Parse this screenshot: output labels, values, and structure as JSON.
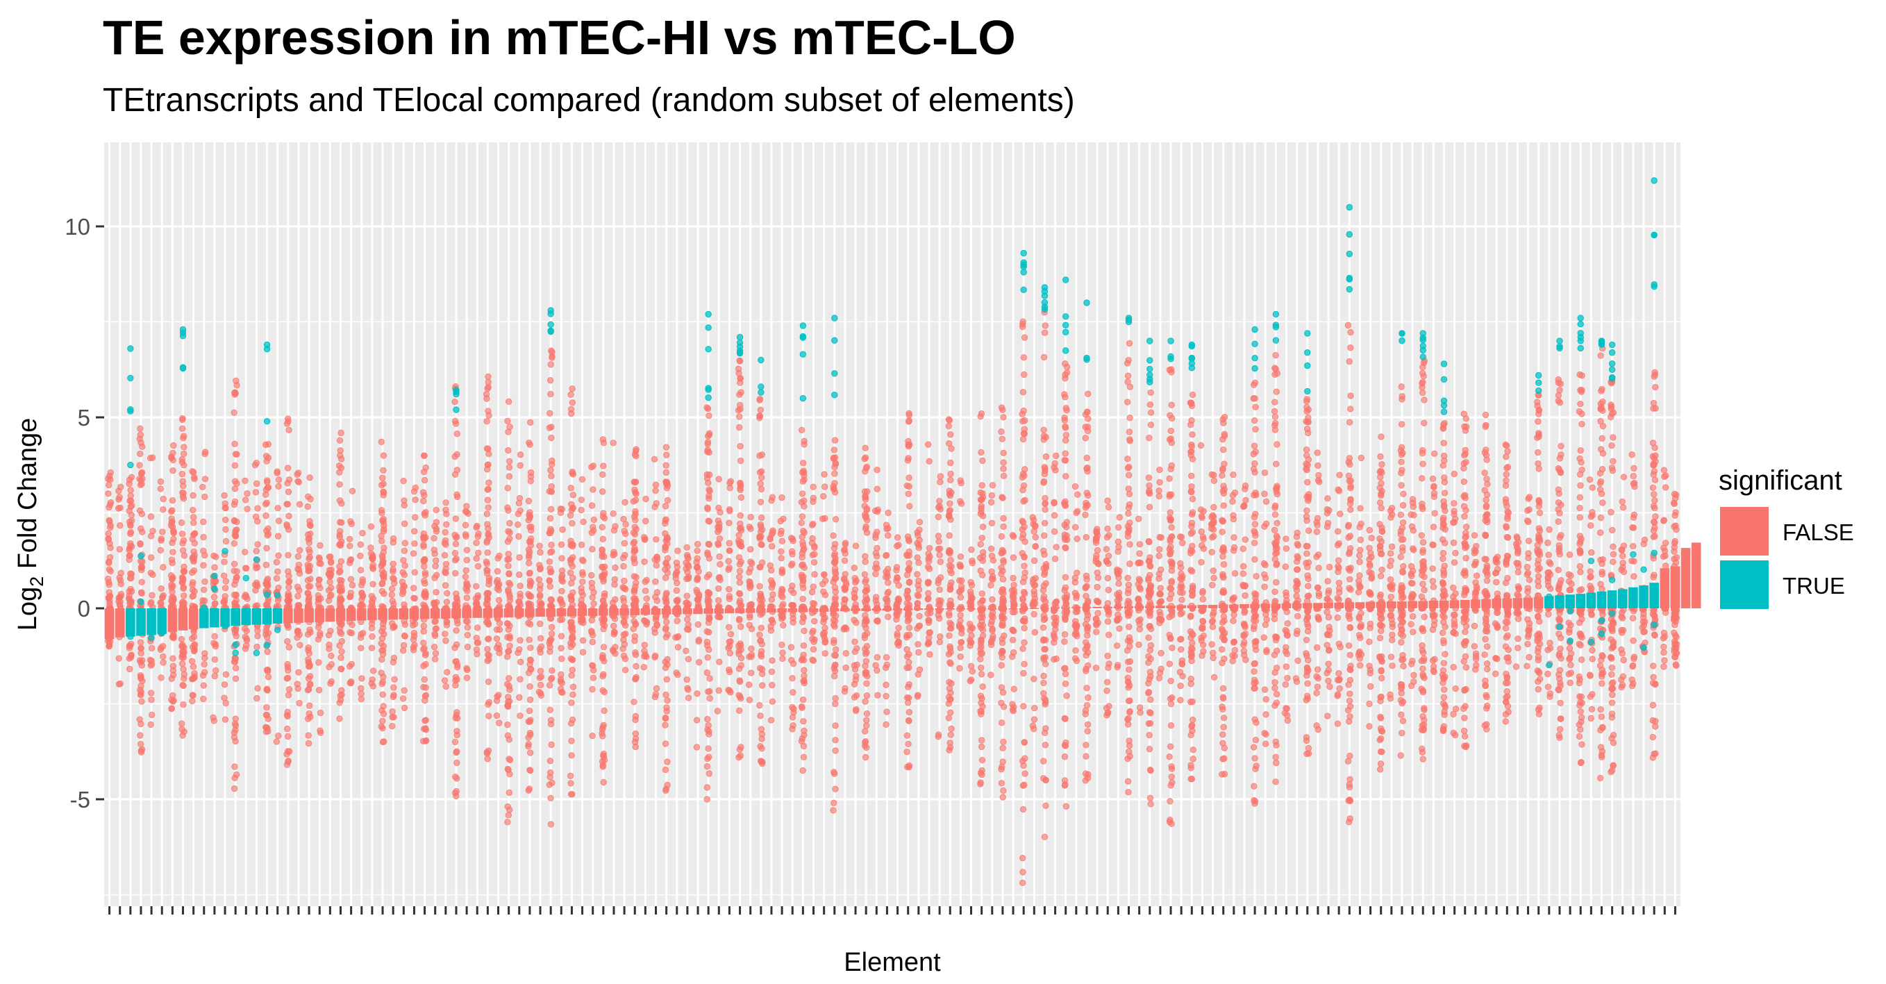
{
  "chart_data": {
    "type": "bar",
    "title": "TE expression in mTEC-HI vs mTEC-LO",
    "subtitle": "TEtranscripts and TElocal compared (random subset of elements)",
    "xlabel": "Element",
    "ylabel_base": "Log",
    "ylabel_sub": "2",
    "ylabel_rest": " Fold Change",
    "ylim": [
      -7.8,
      12.2
    ],
    "yticks": [
      -5,
      0,
      5,
      10
    ],
    "ytick_labels": [
      "-5",
      "0",
      "5",
      "10"
    ],
    "grid": true,
    "legend": {
      "title": "significant",
      "placement": "right",
      "entries": [
        {
          "label": "FALSE",
          "color": "#F8766D"
        },
        {
          "label": "TRUE",
          "color": "#00BFC4"
        }
      ]
    },
    "colors": {
      "false": "#F8766D",
      "true": "#00BFC4",
      "panel": "#EBEBEB",
      "grid": "#FFFFFF"
    },
    "n_elements": 150,
    "bars": {
      "values": [
        -0.8,
        -0.76,
        -0.74,
        -0.72,
        -0.7,
        -0.67,
        -0.62,
        -0.58,
        -0.55,
        -0.52,
        -0.5,
        -0.48,
        -0.46,
        -0.44,
        -0.43,
        -0.42,
        -0.4,
        -0.39,
        -0.38,
        -0.37,
        -0.36,
        -0.35,
        -0.34,
        -0.33,
        -0.32,
        -0.31,
        -0.3,
        -0.3,
        -0.29,
        -0.28,
        -0.28,
        -0.27,
        -0.27,
        -0.26,
        -0.26,
        -0.25,
        -0.25,
        -0.24,
        -0.24,
        -0.23,
        -0.23,
        -0.22,
        -0.22,
        -0.21,
        -0.21,
        -0.2,
        -0.2,
        -0.19,
        -0.19,
        -0.18,
        -0.18,
        -0.17,
        -0.17,
        -0.16,
        -0.16,
        -0.15,
        -0.15,
        -0.14,
        -0.14,
        -0.13,
        -0.13,
        -0.12,
        -0.12,
        -0.11,
        -0.11,
        -0.1,
        -0.1,
        -0.09,
        -0.09,
        -0.08,
        -0.08,
        -0.07,
        -0.07,
        -0.06,
        -0.06,
        -0.05,
        -0.05,
        -0.04,
        -0.04,
        -0.03,
        -0.03,
        -0.02,
        -0.02,
        -0.01,
        -0.01,
        0.0,
        0.0,
        0.0,
        0.01,
        0.01,
        0.02,
        0.02,
        0.03,
        0.03,
        0.04,
        0.04,
        0.05,
        0.05,
        0.06,
        0.06,
        0.07,
        0.07,
        0.08,
        0.08,
        0.09,
        0.09,
        0.1,
        0.1,
        0.11,
        0.11,
        0.12,
        0.12,
        0.13,
        0.13,
        0.14,
        0.14,
        0.15,
        0.15,
        0.16,
        0.16,
        0.17,
        0.17,
        0.18,
        0.18,
        0.19,
        0.19,
        0.2,
        0.2,
        0.21,
        0.22,
        0.23,
        0.24,
        0.25,
        0.26,
        0.27,
        0.28,
        0.3,
        0.32,
        0.34,
        0.36,
        0.38,
        0.41,
        0.44,
        0.47,
        0.5,
        0.55,
        0.6,
        0.67,
        1.05,
        1.1,
        1.58,
        1.72
      ],
      "significant_indices": [
        2,
        3,
        4,
        5,
        9,
        10,
        11,
        12,
        13,
        14,
        15,
        16,
        137,
        138,
        139,
        140,
        141,
        142,
        143,
        144,
        145,
        146,
        147
      ]
    },
    "tall_columns": [
      {
        "index": 0,
        "min": -1.0,
        "max": 3.8,
        "sig_max": null
      },
      {
        "index": 2,
        "min": -1.6,
        "max": 3.5,
        "sig_max": 6.8
      },
      {
        "index": 3,
        "min": -3.8,
        "max": 5.1,
        "sig_max": null
      },
      {
        "index": 6,
        "min": -2.8,
        "max": 4.4,
        "sig_max": null
      },
      {
        "index": 7,
        "min": -3.4,
        "max": 5.0,
        "sig_max": 7.3
      },
      {
        "index": 8,
        "min": -2.7,
        "max": 3.8,
        "sig_max": null
      },
      {
        "index": 12,
        "min": -4.9,
        "max": 6.0,
        "sig_max": null
      },
      {
        "index": 15,
        "min": -3.3,
        "max": 4.8,
        "sig_max": 6.9
      },
      {
        "index": 17,
        "min": -4.2,
        "max": 5.0,
        "sig_max": null
      },
      {
        "index": 19,
        "min": -3.6,
        "max": 3.6,
        "sig_max": null
      },
      {
        "index": 22,
        "min": -3.1,
        "max": 4.7,
        "sig_max": null
      },
      {
        "index": 26,
        "min": -3.5,
        "max": 4.6,
        "sig_max": null
      },
      {
        "index": 30,
        "min": -3.6,
        "max": 4.2,
        "sig_max": null
      },
      {
        "index": 33,
        "min": -5.0,
        "max": 6.0,
        "sig_max": 5.2
      },
      {
        "index": 36,
        "min": -4.5,
        "max": 6.3,
        "sig_max": null
      },
      {
        "index": 38,
        "min": -5.7,
        "max": 5.5,
        "sig_max": null
      },
      {
        "index": 40,
        "min": -4.9,
        "max": 5.3,
        "sig_max": null
      },
      {
        "index": 42,
        "min": -5.8,
        "max": 7.2,
        "sig_max": 7.8
      },
      {
        "index": 44,
        "min": -5.3,
        "max": 5.8,
        "sig_max": null
      },
      {
        "index": 47,
        "min": -4.6,
        "max": 4.7,
        "sig_max": null
      },
      {
        "index": 50,
        "min": -3.9,
        "max": 4.5,
        "sig_max": null
      },
      {
        "index": 53,
        "min": -5.0,
        "max": 4.3,
        "sig_max": null
      },
      {
        "index": 57,
        "min": -5.4,
        "max": 5.4,
        "sig_max": 7.7
      },
      {
        "index": 60,
        "min": -4.6,
        "max": 6.5,
        "sig_max": 7.1
      },
      {
        "index": 62,
        "min": -4.1,
        "max": 5.6,
        "sig_max": 6.5
      },
      {
        "index": 66,
        "min": -4.5,
        "max": 4.9,
        "sig_max": 7.4
      },
      {
        "index": 69,
        "min": -5.6,
        "max": 4.4,
        "sig_max": 7.6
      },
      {
        "index": 72,
        "min": -4.1,
        "max": 4.3,
        "sig_max": null
      },
      {
        "index": 76,
        "min": -4.3,
        "max": 5.2,
        "sig_max": null
      },
      {
        "index": 80,
        "min": -3.9,
        "max": 5.3,
        "sig_max": null
      },
      {
        "index": 83,
        "min": -4.9,
        "max": 5.1,
        "sig_max": null
      },
      {
        "index": 85,
        "min": -5.5,
        "max": 5.3,
        "sig_max": null
      },
      {
        "index": 87,
        "min": -7.2,
        "max": 7.9,
        "sig_max": 9.3
      },
      {
        "index": 89,
        "min": -6.1,
        "max": 7.8,
        "sig_max": 8.4
      },
      {
        "index": 91,
        "min": -5.2,
        "max": 6.5,
        "sig_max": 8.6
      },
      {
        "index": 93,
        "min": -4.8,
        "max": 5.7,
        "sig_max": 8.0
      },
      {
        "index": 97,
        "min": -4.9,
        "max": 7.3,
        "sig_max": 7.6
      },
      {
        "index": 99,
        "min": -5.5,
        "max": 5.9,
        "sig_max": 7.0
      },
      {
        "index": 101,
        "min": -6.0,
        "max": 6.4,
        "sig_max": 7.0
      },
      {
        "index": 103,
        "min": -4.8,
        "max": 5.9,
        "sig_max": 6.9
      },
      {
        "index": 106,
        "min": -4.5,
        "max": 5.2,
        "sig_max": null
      },
      {
        "index": 109,
        "min": -5.2,
        "max": 6.1,
        "sig_max": 7.3
      },
      {
        "index": 111,
        "min": -4.6,
        "max": 6.9,
        "sig_max": 7.7
      },
      {
        "index": 114,
        "min": -4.0,
        "max": 5.5,
        "sig_max": 7.2
      },
      {
        "index": 118,
        "min": -5.8,
        "max": 8.3,
        "sig_max": 10.5
      },
      {
        "index": 121,
        "min": -4.3,
        "max": 5.0,
        "sig_max": null
      },
      {
        "index": 123,
        "min": -3.9,
        "max": 6.6,
        "sig_max": 7.2
      },
      {
        "index": 125,
        "min": -4.0,
        "max": 6.5,
        "sig_max": 7.2
      },
      {
        "index": 127,
        "min": -3.5,
        "max": 5.0,
        "sig_max": 6.4
      },
      {
        "index": 129,
        "min": -3.8,
        "max": 5.2,
        "sig_max": null
      },
      {
        "index": 131,
        "min": -3.4,
        "max": 5.1,
        "sig_max": null
      },
      {
        "index": 133,
        "min": -3.2,
        "max": 4.4,
        "sig_max": null
      },
      {
        "index": 136,
        "min": -3.3,
        "max": 5.6,
        "sig_max": 6.1
      },
      {
        "index": 138,
        "min": -3.6,
        "max": 6.2,
        "sig_max": 7.0
      },
      {
        "index": 140,
        "min": -4.1,
        "max": 6.5,
        "sig_max": 7.6
      },
      {
        "index": 142,
        "min": -4.5,
        "max": 6.9,
        "sig_max": 7.0
      },
      {
        "index": 143,
        "min": -4.8,
        "max": 6.0,
        "sig_max": 6.9
      },
      {
        "index": 147,
        "min": -4.1,
        "max": 6.2,
        "sig_max": 11.2
      },
      {
        "index": 149,
        "min": -1.5,
        "max": 3.0,
        "sig_max": null
      }
    ]
  }
}
